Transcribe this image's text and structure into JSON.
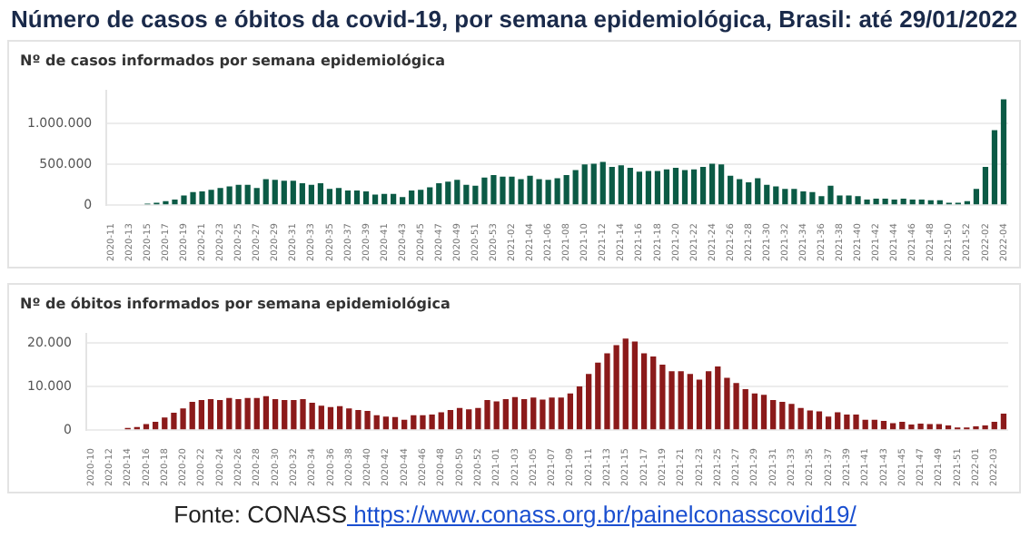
{
  "chart_data": [
    {
      "type": "bar",
      "title": "Número de casos e óbitos da covid-19, por semana epidemiológica, Brasil: até 29/01/2022",
      "subtitle": "Nº de casos informados por semana epidemiológica",
      "categories": [
        "2020-11",
        null,
        "2020-13",
        null,
        "2020-15",
        null,
        "2020-17",
        null,
        "2020-19",
        null,
        "2020-21",
        null,
        "2020-23",
        null,
        "2020-25",
        null,
        "2020-27",
        null,
        "2020-29",
        null,
        "2020-31",
        null,
        "2020-33",
        null,
        "2020-35",
        null,
        "2020-37",
        null,
        "2020-39",
        null,
        "2020-41",
        null,
        "2020-43",
        null,
        "2020-45",
        null,
        "2020-47",
        null,
        "2020-49",
        null,
        "2020-51",
        null,
        "2020-53",
        null,
        "2021-02",
        null,
        "2021-04",
        null,
        "2021-06",
        null,
        "2021-08",
        null,
        "2021-10",
        null,
        "2021-12",
        null,
        "2021-14",
        null,
        "2021-16",
        null,
        "2021-18",
        null,
        "2021-20",
        null,
        "2021-22",
        null,
        "2021-24",
        null,
        "2021-26",
        null,
        "2021-28",
        null,
        "2021-30",
        null,
        "2021-32",
        null,
        "2021-34",
        null,
        "2021-36",
        null,
        "2021-38",
        null,
        "2021-40",
        null,
        "2021-42",
        null,
        "2021-44",
        null,
        "2021-46",
        null,
        "2021-48",
        null,
        "2021-50",
        null,
        "2021-52",
        null,
        "2022-02",
        null,
        "2022-04"
      ],
      "values": [
        0,
        0,
        10000,
        10000,
        20000,
        30000,
        50000,
        70000,
        120000,
        160000,
        170000,
        190000,
        210000,
        230000,
        250000,
        250000,
        210000,
        320000,
        310000,
        300000,
        300000,
        270000,
        250000,
        270000,
        200000,
        210000,
        180000,
        180000,
        170000,
        130000,
        140000,
        140000,
        100000,
        180000,
        190000,
        220000,
        270000,
        290000,
        310000,
        250000,
        240000,
        340000,
        370000,
        350000,
        350000,
        320000,
        360000,
        320000,
        310000,
        330000,
        370000,
        430000,
        500000,
        510000,
        530000,
        470000,
        490000,
        460000,
        410000,
        420000,
        420000,
        440000,
        460000,
        430000,
        440000,
        470000,
        510000,
        500000,
        360000,
        320000,
        280000,
        330000,
        250000,
        230000,
        200000,
        200000,
        170000,
        160000,
        110000,
        240000,
        120000,
        120000,
        110000,
        70000,
        80000,
        80000,
        70000,
        80000,
        70000,
        70000,
        60000,
        60000,
        30000,
        30000,
        50000,
        200000,
        470000,
        920000,
        1300000
      ],
      "color": "#0b5a45",
      "ylim": [
        0,
        1400000
      ],
      "yticks": [
        0,
        {
          "value": 500000,
          "label": "500.000"
        },
        {
          "value": 1000000,
          "label": "1.000.000"
        }
      ],
      "grid": "y",
      "legend": false
    },
    {
      "type": "bar",
      "title": "Nº de óbitos informados por semana epidemiológica",
      "categories": [
        "2020-10",
        null,
        "2020-12",
        null,
        "2020-14",
        null,
        "2020-16",
        null,
        "2020-18",
        null,
        "2020-20",
        null,
        "2020-22",
        null,
        "2020-24",
        null,
        "2020-26",
        null,
        "2020-28",
        null,
        "2020-30",
        null,
        "2020-32",
        null,
        "2020-34",
        null,
        "2020-36",
        null,
        "2020-38",
        null,
        "2020-40",
        null,
        "2020-42",
        null,
        "2020-44",
        null,
        "2020-46",
        null,
        "2020-48",
        null,
        "2020-50",
        null,
        "2020-52",
        null,
        "2021-01",
        null,
        "2021-03",
        null,
        "2021-05",
        null,
        "2021-07",
        null,
        "2021-09",
        null,
        "2021-11",
        null,
        "2021-13",
        null,
        "2021-15",
        null,
        "2021-17",
        null,
        "2021-19",
        null,
        "2021-21",
        null,
        "2021-23",
        null,
        "2021-25",
        null,
        "2021-27",
        null,
        "2021-29",
        null,
        "2021-31",
        null,
        "2021-33",
        null,
        "2021-35",
        null,
        "2021-37",
        null,
        "2021-39",
        null,
        "2021-41",
        null,
        "2021-43",
        null,
        "2021-45",
        null,
        "2021-47",
        null,
        "2021-49",
        null,
        "2021-51",
        null,
        "2022-01",
        null,
        "2022-03",
        null
      ],
      "values": [
        0,
        0,
        0,
        0,
        500,
        700,
        1400,
        1900,
        2900,
        4000,
        5000,
        6500,
        6900,
        7100,
        6900,
        7400,
        7100,
        7400,
        7400,
        7800,
        7100,
        6900,
        6900,
        7100,
        6300,
        5600,
        5300,
        5500,
        5000,
        4600,
        4400,
        3400,
        3100,
        3000,
        2400,
        3400,
        3400,
        3600,
        4100,
        4600,
        5100,
        4800,
        5100,
        6900,
        6600,
        7100,
        7600,
        7100,
        7500,
        7000,
        7500,
        7500,
        8400,
        10000,
        12900,
        15500,
        17600,
        19500,
        21000,
        20300,
        17600,
        16900,
        15000,
        13500,
        13500,
        12900,
        11600,
        13500,
        14600,
        12000,
        10800,
        9400,
        8400,
        8100,
        6900,
        6500,
        6000,
        5100,
        4500,
        4300,
        3100,
        4100,
        3600,
        3600,
        2400,
        2400,
        2100,
        1600,
        1900,
        1300,
        1500,
        1400,
        1400,
        1100,
        600,
        600,
        900,
        1100,
        1900,
        3800
      ],
      "color": "#8b1a1a",
      "ylim": [
        0,
        22000
      ],
      "yticks": [
        0,
        {
          "value": 10000,
          "label": "10.000"
        },
        {
          "value": 20000,
          "label": "20.000"
        }
      ],
      "grid": "y",
      "legend": false,
      "annotations": [
        "Fonte: CONASS",
        "https://www.conass.org.br/painelconasscovid19/"
      ]
    }
  ]
}
